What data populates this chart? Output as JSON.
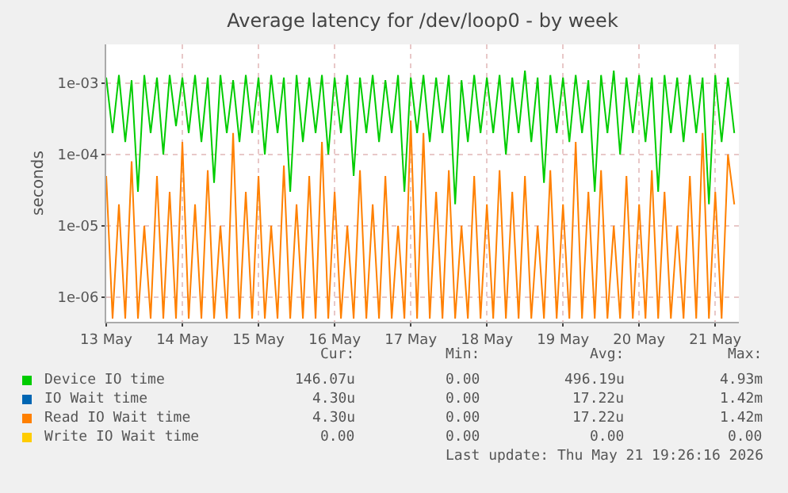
{
  "chart_data": {
    "type": "line",
    "title": "Average latency for /dev/loop0 - by week",
    "ylabel": "seconds",
    "log": "y",
    "grid": true,
    "legend": "bottom",
    "line_style": "solid",
    "marker": "none",
    "xlim": [
      "2026-05-13T12:00",
      "2026-05-21T19:26"
    ],
    "xticks": [
      {
        "value": "2026-05-13T12:00",
        "label": "13 May"
      },
      {
        "value": "2026-05-14T12:00",
        "label": "14 May"
      },
      {
        "value": "2026-05-15T12:00",
        "label": "15 May"
      },
      {
        "value": "2026-05-16T12:00",
        "label": "16 May"
      },
      {
        "value": "2026-05-17T12:00",
        "label": "17 May"
      },
      {
        "value": "2026-05-18T12:00",
        "label": "18 May"
      },
      {
        "value": "2026-05-19T12:00",
        "label": "19 May"
      },
      {
        "value": "2026-05-20T12:00",
        "label": "20 May"
      },
      {
        "value": "2026-05-21T12:00",
        "label": "21 May"
      }
    ],
    "ylim": [
      4.5e-07,
      0.0035
    ],
    "yticks": [
      {
        "value": 1e-06,
        "label": "1e-06"
      },
      {
        "value": 1e-05,
        "label": "1e-05"
      },
      {
        "value": 0.0001,
        "label": "1e-04"
      },
      {
        "value": 0.001,
        "label": "1e-03"
      }
    ],
    "x": [
      "2026-05-13T12:00",
      "2026-05-13T14:00",
      "2026-05-13T16:00",
      "2026-05-13T18:00",
      "2026-05-13T20:00",
      "2026-05-13T22:00",
      "2026-05-14T00:00",
      "2026-05-14T02:00",
      "2026-05-14T04:00",
      "2026-05-14T06:00",
      "2026-05-14T08:00",
      "2026-05-14T10:00",
      "2026-05-14T12:00",
      "2026-05-14T14:00",
      "2026-05-14T16:00",
      "2026-05-14T18:00",
      "2026-05-14T20:00",
      "2026-05-14T22:00",
      "2026-05-15T00:00",
      "2026-05-15T02:00",
      "2026-05-15T04:00",
      "2026-05-15T06:00",
      "2026-05-15T08:00",
      "2026-05-15T10:00",
      "2026-05-15T12:00",
      "2026-05-15T14:00",
      "2026-05-15T16:00",
      "2026-05-15T18:00",
      "2026-05-15T20:00",
      "2026-05-15T22:00",
      "2026-05-16T00:00",
      "2026-05-16T02:00",
      "2026-05-16T04:00",
      "2026-05-16T06:00",
      "2026-05-16T08:00",
      "2026-05-16T10:00",
      "2026-05-16T12:00",
      "2026-05-16T14:00",
      "2026-05-16T16:00",
      "2026-05-16T18:00",
      "2026-05-16T20:00",
      "2026-05-16T22:00",
      "2026-05-17T00:00",
      "2026-05-17T02:00",
      "2026-05-17T04:00",
      "2026-05-17T06:00",
      "2026-05-17T08:00",
      "2026-05-17T10:00",
      "2026-05-17T12:00",
      "2026-05-17T14:00",
      "2026-05-17T16:00",
      "2026-05-17T18:00",
      "2026-05-17T20:00",
      "2026-05-17T22:00",
      "2026-05-18T00:00",
      "2026-05-18T02:00",
      "2026-05-18T04:00",
      "2026-05-18T06:00",
      "2026-05-18T08:00",
      "2026-05-18T10:00",
      "2026-05-18T12:00",
      "2026-05-18T14:00",
      "2026-05-18T16:00",
      "2026-05-18T18:00",
      "2026-05-18T20:00",
      "2026-05-18T22:00",
      "2026-05-19T00:00",
      "2026-05-19T02:00",
      "2026-05-19T04:00",
      "2026-05-19T06:00",
      "2026-05-19T08:00",
      "2026-05-19T10:00",
      "2026-05-19T12:00",
      "2026-05-19T14:00",
      "2026-05-19T16:00",
      "2026-05-19T18:00",
      "2026-05-19T20:00",
      "2026-05-19T22:00",
      "2026-05-20T00:00",
      "2026-05-20T02:00",
      "2026-05-20T04:00",
      "2026-05-20T06:00",
      "2026-05-20T08:00",
      "2026-05-20T10:00",
      "2026-05-20T12:00",
      "2026-05-20T14:00",
      "2026-05-20T16:00",
      "2026-05-20T18:00",
      "2026-05-20T20:00",
      "2026-05-20T22:00",
      "2026-05-21T00:00",
      "2026-05-21T02:00",
      "2026-05-21T04:00",
      "2026-05-21T06:00",
      "2026-05-21T08:00",
      "2026-05-21T10:00",
      "2026-05-21T12:00",
      "2026-05-21T14:00",
      "2026-05-21T16:00",
      "2026-05-21T18:00"
    ],
    "series": [
      {
        "name": "Device IO time",
        "color": "#00cc00",
        "values": [
          0.0012,
          0.0002,
          0.0013,
          0.00015,
          0.0011,
          3e-05,
          0.0013,
          0.0002,
          0.0012,
          0.0001,
          0.0013,
          0.00025,
          0.0012,
          0.0002,
          0.0013,
          0.00015,
          0.0012,
          4e-05,
          0.0013,
          0.0002,
          0.0011,
          0.00015,
          0.0013,
          0.0002,
          0.0012,
          0.0001,
          0.0013,
          0.0002,
          0.0012,
          3e-05,
          0.0013,
          0.00015,
          0.0012,
          0.0002,
          0.0013,
          0.0001,
          0.0012,
          0.0002,
          0.0013,
          5e-05,
          0.0012,
          0.0002,
          0.0013,
          0.00015,
          0.0011,
          0.0002,
          0.0013,
          3e-05,
          0.0012,
          0.0002,
          0.0013,
          0.00015,
          0.0012,
          0.0002,
          0.0013,
          2e-05,
          0.0011,
          0.00015,
          0.0013,
          0.0002,
          0.0012,
          0.0002,
          0.0013,
          0.0001,
          0.0012,
          0.0002,
          0.0015,
          0.00015,
          0.0012,
          4e-05,
          0.0013,
          0.0002,
          0.0012,
          0.00015,
          0.0013,
          0.0002,
          0.0011,
          3e-05,
          0.0013,
          0.0002,
          0.0015,
          0.0001,
          0.0012,
          0.0002,
          0.0013,
          0.00015,
          0.0012,
          3e-05,
          0.0013,
          0.0002,
          0.0012,
          0.00015,
          0.0013,
          0.0002,
          0.0012,
          2e-05,
          0.0013,
          0.00015,
          0.0012,
          0.0002
        ]
      },
      {
        "name": "IO Wait time",
        "color": "#0066b3",
        "values": [
          null,
          null,
          null,
          null,
          null,
          null,
          null,
          null,
          null,
          null,
          null,
          null,
          null,
          null,
          null,
          null,
          null,
          null,
          null,
          null,
          null,
          null,
          null,
          null,
          null,
          null,
          null,
          null,
          null,
          null,
          null,
          null,
          null,
          null,
          null,
          null,
          null,
          null,
          null,
          null,
          null,
          null,
          null,
          null,
          null,
          null,
          null,
          null,
          null,
          null,
          null,
          null,
          null,
          null,
          null,
          null,
          null,
          null,
          null,
          null,
          null,
          null,
          null,
          null,
          null,
          null,
          null,
          null,
          null,
          null,
          null,
          null,
          null,
          null,
          null,
          null,
          null,
          null,
          null,
          null,
          null,
          null,
          null,
          null,
          null,
          null,
          null,
          null,
          null,
          null,
          null,
          null,
          null,
          null,
          null,
          null,
          null,
          null,
          null,
          null
        ]
      },
      {
        "name": "Read IO Wait time",
        "color": "#ff8000",
        "values": [
          5e-05,
          5e-07,
          2e-05,
          5e-07,
          8e-05,
          5e-07,
          1e-05,
          5e-07,
          5e-05,
          5e-07,
          3e-05,
          5e-07,
          0.00015,
          5e-07,
          2e-05,
          5e-07,
          6e-05,
          5e-07,
          1e-05,
          5e-07,
          0.0002,
          5e-07,
          3e-05,
          5e-07,
          5e-05,
          5e-07,
          1e-05,
          5e-07,
          7e-05,
          5e-07,
          2e-05,
          5e-07,
          5e-05,
          5e-07,
          0.00015,
          5e-07,
          3e-05,
          5e-07,
          1e-05,
          5e-07,
          6e-05,
          5e-07,
          2e-05,
          5e-07,
          5e-05,
          5e-07,
          1e-05,
          5e-07,
          0.0003,
          5e-07,
          0.0002,
          5e-07,
          3e-05,
          5e-07,
          6e-05,
          5e-07,
          1e-05,
          5e-07,
          5e-05,
          5e-07,
          2e-05,
          5e-07,
          6e-05,
          5e-07,
          3e-05,
          5e-07,
          5e-05,
          5e-07,
          1e-05,
          5e-07,
          6e-05,
          5e-07,
          2e-05,
          5e-07,
          0.00015,
          5e-07,
          3e-05,
          5e-07,
          6e-05,
          5e-07,
          1e-05,
          5e-07,
          5e-05,
          5e-07,
          2e-05,
          5e-07,
          6e-05,
          5e-07,
          3e-05,
          5e-07,
          1e-05,
          5e-07,
          5e-05,
          5e-07,
          0.0002,
          5e-07,
          3e-05,
          5e-07,
          0.0001,
          2e-05
        ]
      },
      {
        "name": "Write IO Wait time",
        "color": "#ffcc00",
        "values": [
          null,
          null,
          null,
          null,
          null,
          null,
          null,
          null,
          null,
          null,
          null,
          null,
          null,
          null,
          null,
          null,
          null,
          null,
          null,
          null,
          null,
          null,
          null,
          null,
          null,
          null,
          null,
          null,
          null,
          null,
          null,
          null,
          null,
          null,
          null,
          null,
          null,
          null,
          null,
          null,
          null,
          null,
          null,
          null,
          null,
          null,
          null,
          null,
          null,
          null,
          null,
          null,
          null,
          null,
          null,
          null,
          null,
          null,
          null,
          null,
          null,
          null,
          null,
          null,
          null,
          null,
          null,
          null,
          null,
          null,
          null,
          null,
          null,
          null,
          null,
          null,
          null,
          null,
          null,
          null,
          null,
          null,
          null,
          null,
          null,
          null,
          null,
          null,
          null,
          null,
          null,
          null,
          null,
          null,
          null,
          null,
          null,
          null,
          null,
          null
        ]
      }
    ],
    "annotations": [
      "Cur:",
      "Min:",
      "Avg:",
      "Max:",
      "146.07u",
      "0.00",
      "496.19u",
      "4.93m",
      "4.30u",
      "0.00",
      "17.22u",
      "1.42m",
      "4.30u",
      "0.00",
      "17.22u",
      "1.42m",
      "0.00",
      "0.00",
      "0.00",
      "0.00",
      "Last update: Thu May 21 19:26:16 2026"
    ]
  }
}
